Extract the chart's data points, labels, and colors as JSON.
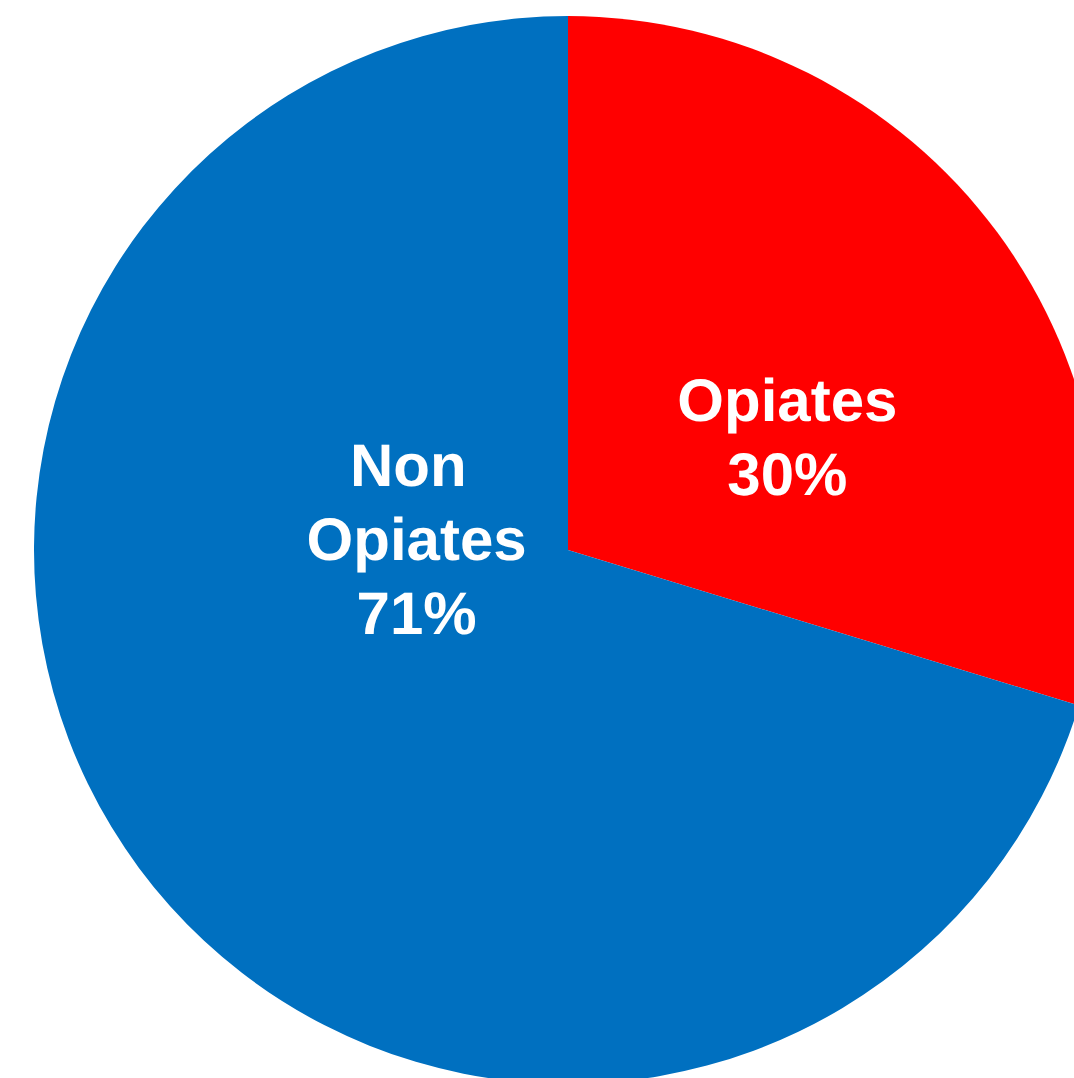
{
  "chart_data": {
    "type": "pie",
    "categories": [
      "Opiates",
      "Non Opiates"
    ],
    "values": [
      30,
      71
    ],
    "colors": [
      "#ff0000",
      "#0070c0"
    ],
    "value_labels": [
      "30%",
      "71%"
    ]
  }
}
